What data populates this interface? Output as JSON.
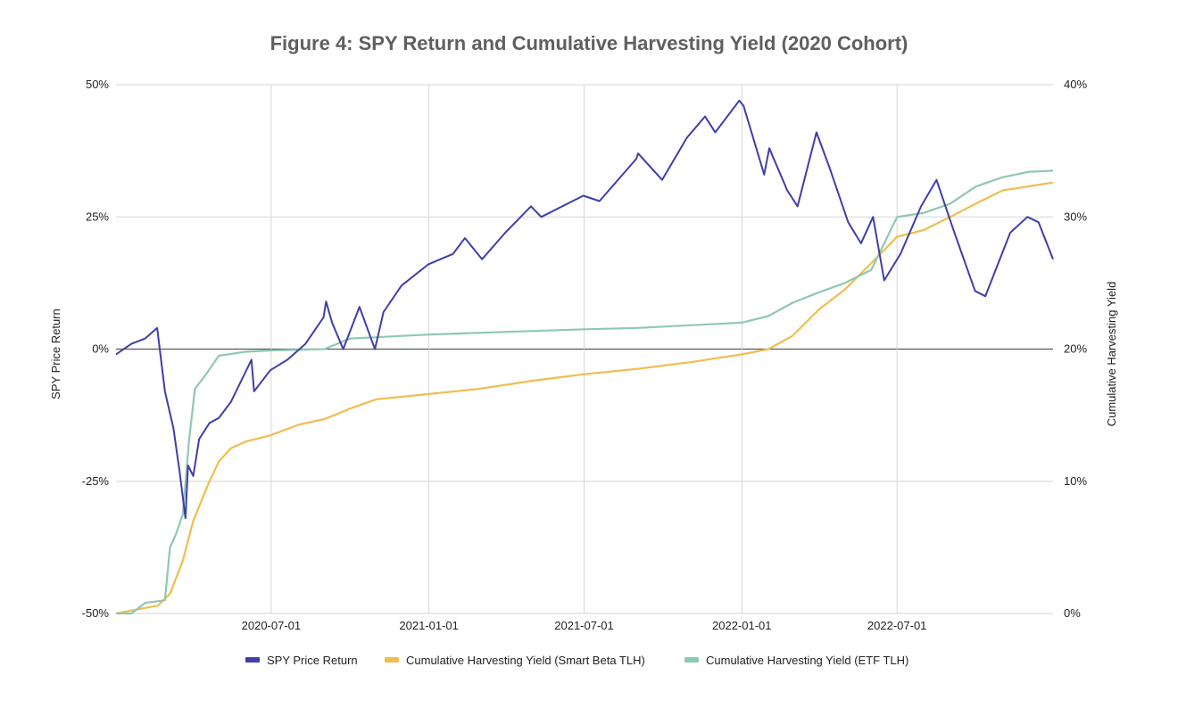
{
  "colors": {
    "spy": "#3f3fa8",
    "smart_beta": "#f0bd4f",
    "etf": "#8fc8b2",
    "grid": "#d6d6d6",
    "zero_line": "#555555"
  },
  "chart_data": {
    "type": "line",
    "title": "Figure 4: SPY Return and Cumulative Harvesting Yield (2020 Cohort)",
    "xlabel": "",
    "x_range": [
      "2020-01-02",
      "2022-12-30"
    ],
    "x_ticks": [
      "2020-07-01",
      "2021-01-01",
      "2021-07-01",
      "2022-01-01",
      "2022-07-01"
    ],
    "y_left": {
      "label": "SPY Price Return",
      "range": [
        -50,
        50
      ],
      "ticks": [
        -50,
        -25,
        0,
        25,
        50
      ],
      "tick_labels": [
        "-50%",
        "-25%",
        "0%",
        "25%",
        "50%"
      ]
    },
    "y_right": {
      "label": "Cumulative Harvesting Yield",
      "range": [
        0,
        40
      ],
      "ticks": [
        0,
        10,
        20,
        30,
        40
      ],
      "tick_labels": [
        "0%",
        "10%",
        "20%",
        "30%",
        "40%"
      ]
    },
    "grid": true,
    "legend_position": "bottom",
    "series": [
      {
        "name": "SPY Price Return",
        "axis": "left",
        "color": "#3f3fa8",
        "points": [
          [
            "2020-01-02",
            -1
          ],
          [
            "2020-01-20",
            1
          ],
          [
            "2020-02-05",
            2
          ],
          [
            "2020-02-19",
            4
          ],
          [
            "2020-02-28",
            -8
          ],
          [
            "2020-03-09",
            -15
          ],
          [
            "2020-03-16",
            -23
          ],
          [
            "2020-03-23",
            -32
          ],
          [
            "2020-03-26",
            -22
          ],
          [
            "2020-04-01",
            -24
          ],
          [
            "2020-04-08",
            -17
          ],
          [
            "2020-04-20",
            -14
          ],
          [
            "2020-05-01",
            -13
          ],
          [
            "2020-05-15",
            -10
          ],
          [
            "2020-06-08",
            -2
          ],
          [
            "2020-06-11",
            -8
          ],
          [
            "2020-06-30",
            -4
          ],
          [
            "2020-07-20",
            -2
          ],
          [
            "2020-08-10",
            1
          ],
          [
            "2020-08-31",
            6
          ],
          [
            "2020-09-03",
            9
          ],
          [
            "2020-09-10",
            5
          ],
          [
            "2020-09-23",
            0
          ],
          [
            "2020-10-12",
            8
          ],
          [
            "2020-10-30",
            0
          ],
          [
            "2020-11-09",
            7
          ],
          [
            "2020-11-30",
            12
          ],
          [
            "2020-12-31",
            16
          ],
          [
            "2021-01-29",
            18
          ],
          [
            "2021-02-12",
            21
          ],
          [
            "2021-03-04",
            17
          ],
          [
            "2021-03-31",
            22
          ],
          [
            "2021-04-30",
            27
          ],
          [
            "2021-05-12",
            25
          ],
          [
            "2021-06-30",
            29
          ],
          [
            "2021-07-19",
            28
          ],
          [
            "2021-08-31",
            36
          ],
          [
            "2021-09-02",
            37
          ],
          [
            "2021-09-30",
            32
          ],
          [
            "2021-10-29",
            40
          ],
          [
            "2021-11-19",
            44
          ],
          [
            "2021-12-01",
            41
          ],
          [
            "2021-12-29",
            47
          ],
          [
            "2022-01-03",
            46
          ],
          [
            "2022-01-27",
            33
          ],
          [
            "2022-02-02",
            38
          ],
          [
            "2022-02-23",
            30
          ],
          [
            "2022-03-07",
            27
          ],
          [
            "2022-03-29",
            41
          ],
          [
            "2022-04-14",
            34
          ],
          [
            "2022-05-05",
            24
          ],
          [
            "2022-05-20",
            20
          ],
          [
            "2022-06-03",
            25
          ],
          [
            "2022-06-16",
            13
          ],
          [
            "2022-07-05",
            18
          ],
          [
            "2022-07-29",
            27
          ],
          [
            "2022-08-16",
            32
          ],
          [
            "2022-09-06",
            22
          ],
          [
            "2022-09-30",
            11
          ],
          [
            "2022-10-12",
            10
          ],
          [
            "2022-11-10",
            22
          ],
          [
            "2022-11-30",
            25
          ],
          [
            "2022-12-13",
            24
          ],
          [
            "2022-12-30",
            17
          ]
        ]
      },
      {
        "name": "Cumulative Harvesting Yield (Smart Beta TLH)",
        "axis": "right",
        "color": "#f0bd4f",
        "points": [
          [
            "2020-01-02",
            0
          ],
          [
            "2020-02-20",
            0.6
          ],
          [
            "2020-03-05",
            1.5
          ],
          [
            "2020-03-20",
            4
          ],
          [
            "2020-04-01",
            7
          ],
          [
            "2020-04-20",
            10
          ],
          [
            "2020-05-01",
            11.5
          ],
          [
            "2020-05-15",
            12.5
          ],
          [
            "2020-06-01",
            13
          ],
          [
            "2020-07-01",
            13.5
          ],
          [
            "2020-08-03",
            14.3
          ],
          [
            "2020-09-01",
            14.7
          ],
          [
            "2020-10-01",
            15.5
          ],
          [
            "2020-11-01",
            16.2
          ],
          [
            "2021-01-01",
            16.6
          ],
          [
            "2021-03-01",
            17
          ],
          [
            "2021-05-01",
            17.6
          ],
          [
            "2021-07-01",
            18.1
          ],
          [
            "2021-09-01",
            18.5
          ],
          [
            "2021-11-01",
            19
          ],
          [
            "2022-01-01",
            19.6
          ],
          [
            "2022-02-01",
            20
          ],
          [
            "2022-03-01",
            21
          ],
          [
            "2022-04-01",
            23
          ],
          [
            "2022-05-01",
            24.5
          ],
          [
            "2022-06-01",
            26.5
          ],
          [
            "2022-07-01",
            28.5
          ],
          [
            "2022-08-01",
            29
          ],
          [
            "2022-09-01",
            30
          ],
          [
            "2022-10-01",
            31
          ],
          [
            "2022-11-01",
            32
          ],
          [
            "2022-12-30",
            32.6
          ]
        ]
      },
      {
        "name": "Cumulative Harvesting Yield (ETF TLH)",
        "axis": "right",
        "color": "#8fc8b2",
        "points": [
          [
            "2020-01-02",
            0
          ],
          [
            "2020-01-20",
            0
          ],
          [
            "2020-02-05",
            0.8
          ],
          [
            "2020-02-28",
            1
          ],
          [
            "2020-03-05",
            5
          ],
          [
            "2020-03-12",
            6
          ],
          [
            "2020-03-20",
            7.5
          ],
          [
            "2020-03-27",
            13
          ],
          [
            "2020-04-03",
            17
          ],
          [
            "2020-04-15",
            18
          ],
          [
            "2020-05-01",
            19.5
          ],
          [
            "2020-06-01",
            19.8
          ],
          [
            "2020-07-01",
            19.9
          ],
          [
            "2020-09-01",
            20
          ],
          [
            "2020-10-01",
            20.8
          ],
          [
            "2020-11-01",
            20.9
          ],
          [
            "2021-01-01",
            21.1
          ],
          [
            "2021-04-01",
            21.3
          ],
          [
            "2021-07-01",
            21.5
          ],
          [
            "2021-09-01",
            21.6
          ],
          [
            "2021-11-01",
            21.8
          ],
          [
            "2022-01-01",
            22
          ],
          [
            "2022-02-01",
            22.5
          ],
          [
            "2022-03-01",
            23.5
          ],
          [
            "2022-04-01",
            24.3
          ],
          [
            "2022-05-01",
            25
          ],
          [
            "2022-06-01",
            26
          ],
          [
            "2022-07-01",
            30
          ],
          [
            "2022-08-01",
            30.3
          ],
          [
            "2022-09-01",
            31
          ],
          [
            "2022-10-01",
            32.3
          ],
          [
            "2022-11-01",
            33
          ],
          [
            "2022-12-01",
            33.4
          ],
          [
            "2022-12-30",
            33.5
          ]
        ]
      }
    ]
  }
}
